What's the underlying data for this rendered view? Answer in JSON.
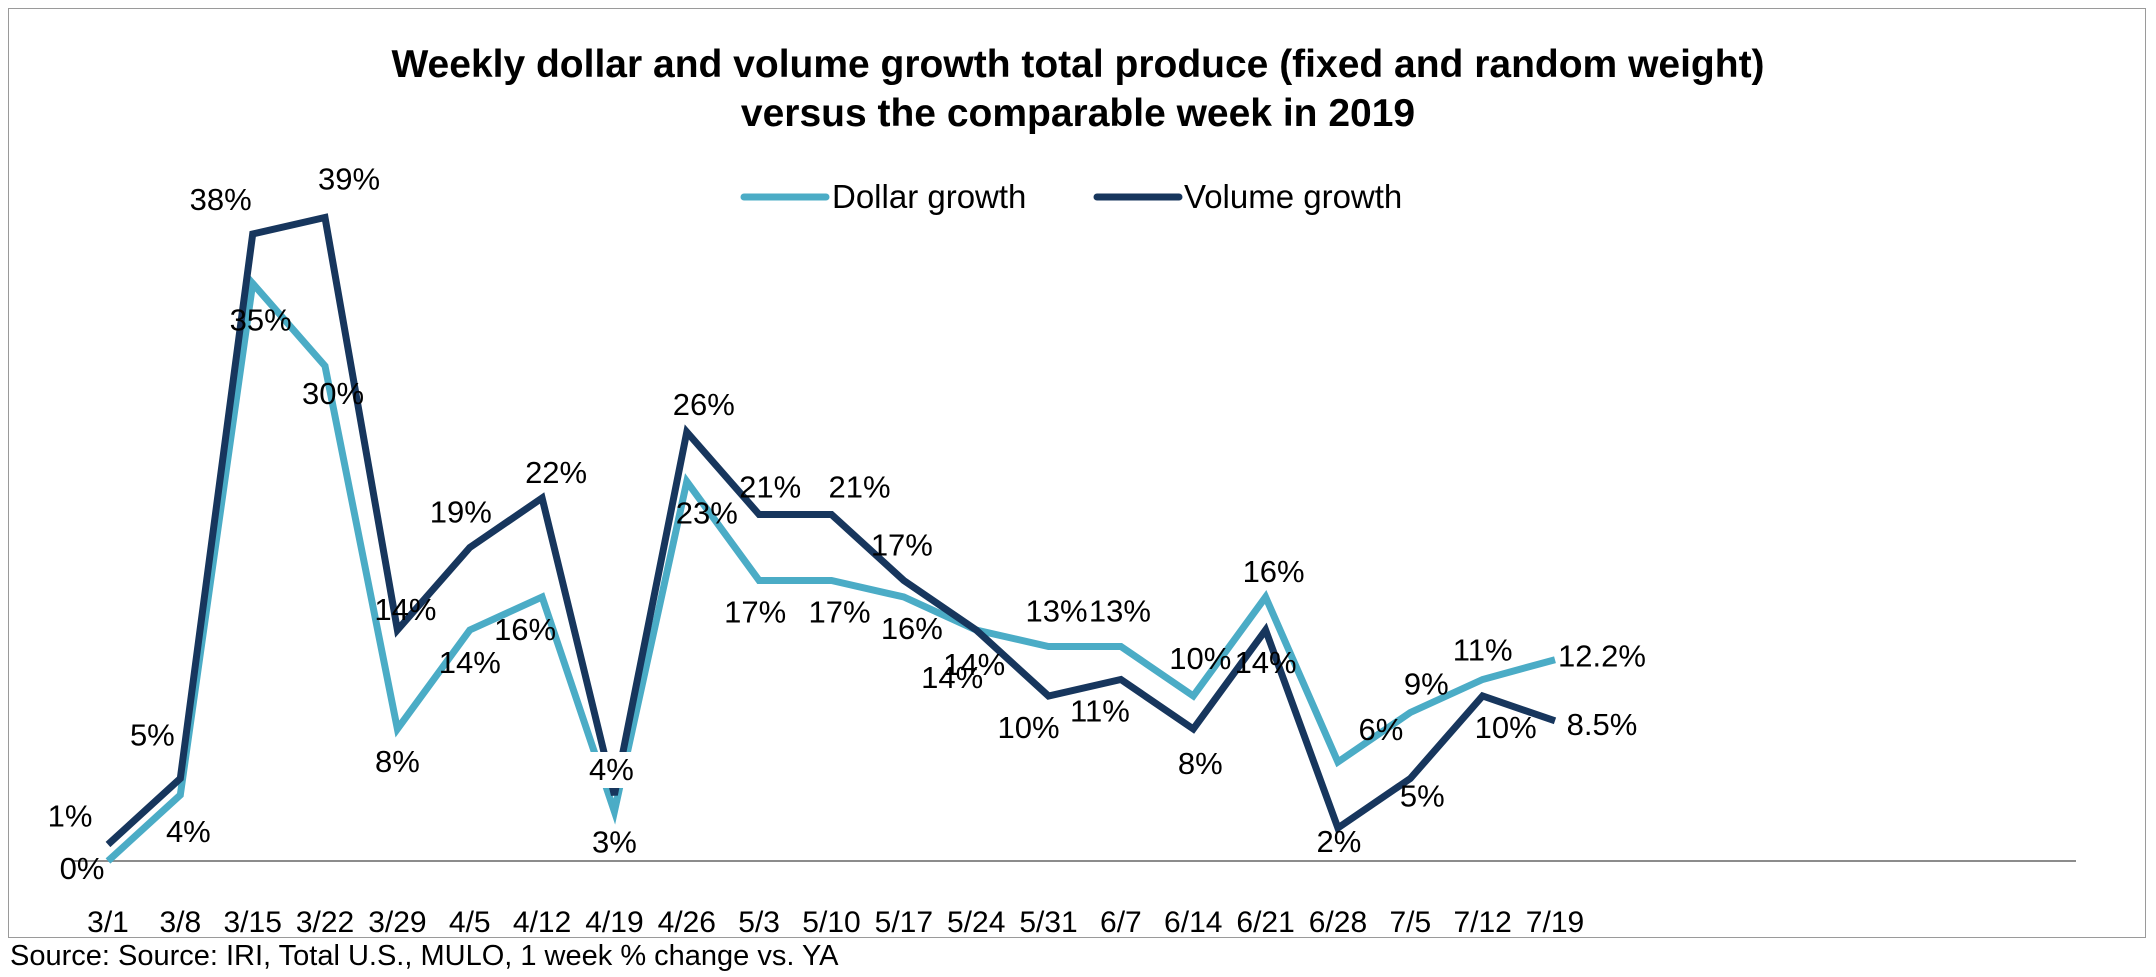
{
  "chart_data": {
    "type": "line",
    "title_lines": [
      "Weekly dollar and volume growth  total produce (fixed and random weight)",
      "versus the comparable week in 2019"
    ],
    "categories": [
      "3/1",
      "3/8",
      "3/15",
      "3/22",
      "3/29",
      "4/5",
      "4/12",
      "4/19",
      "4/26",
      "5/3",
      "5/10",
      "5/17",
      "5/24",
      "5/31",
      "6/7",
      "6/14",
      "6/21",
      "6/28",
      "7/5",
      "7/12",
      "7/19"
    ],
    "series": [
      {
        "name": "Dollar growth",
        "color": "#4bacc6",
        "values": [
          0,
          4,
          35,
          30,
          8,
          14,
          16,
          3,
          23,
          17,
          17,
          16,
          14,
          13,
          13,
          10,
          16,
          6,
          9,
          11,
          12.2
        ],
        "labels": [
          "0%",
          "4%",
          "35%",
          "30%",
          "8%",
          "14%",
          "16%",
          "3%",
          "23%",
          "17%",
          "17%",
          "16%",
          "14%",
          "13%",
          "13%",
          "10%",
          "16%",
          "6%",
          "9%",
          "11%",
          "12.2%"
        ]
      },
      {
        "name": "Volume growth",
        "color": "#17365d",
        "values": [
          1,
          5,
          38,
          39,
          14,
          19,
          22,
          4,
          26,
          21,
          21,
          17,
          14,
          10,
          11,
          8,
          14,
          2,
          5,
          10,
          8.5
        ],
        "labels": [
          "1%",
          "5%",
          "38%",
          "39%",
          "14%",
          "19%",
          "22%",
          "4%",
          "26%",
          "21%",
          "21%",
          "17%",
          "14%",
          "10%",
          "11%",
          "8%",
          "14%",
          "2%",
          "5%",
          "10%",
          "8.5%"
        ]
      }
    ],
    "ylim": [
      0,
      42
    ],
    "grid": false,
    "legend_position": "top-center",
    "source": "Source: Source: IRI, Total U.S., MULO, 1 week % change vs. YA"
  }
}
